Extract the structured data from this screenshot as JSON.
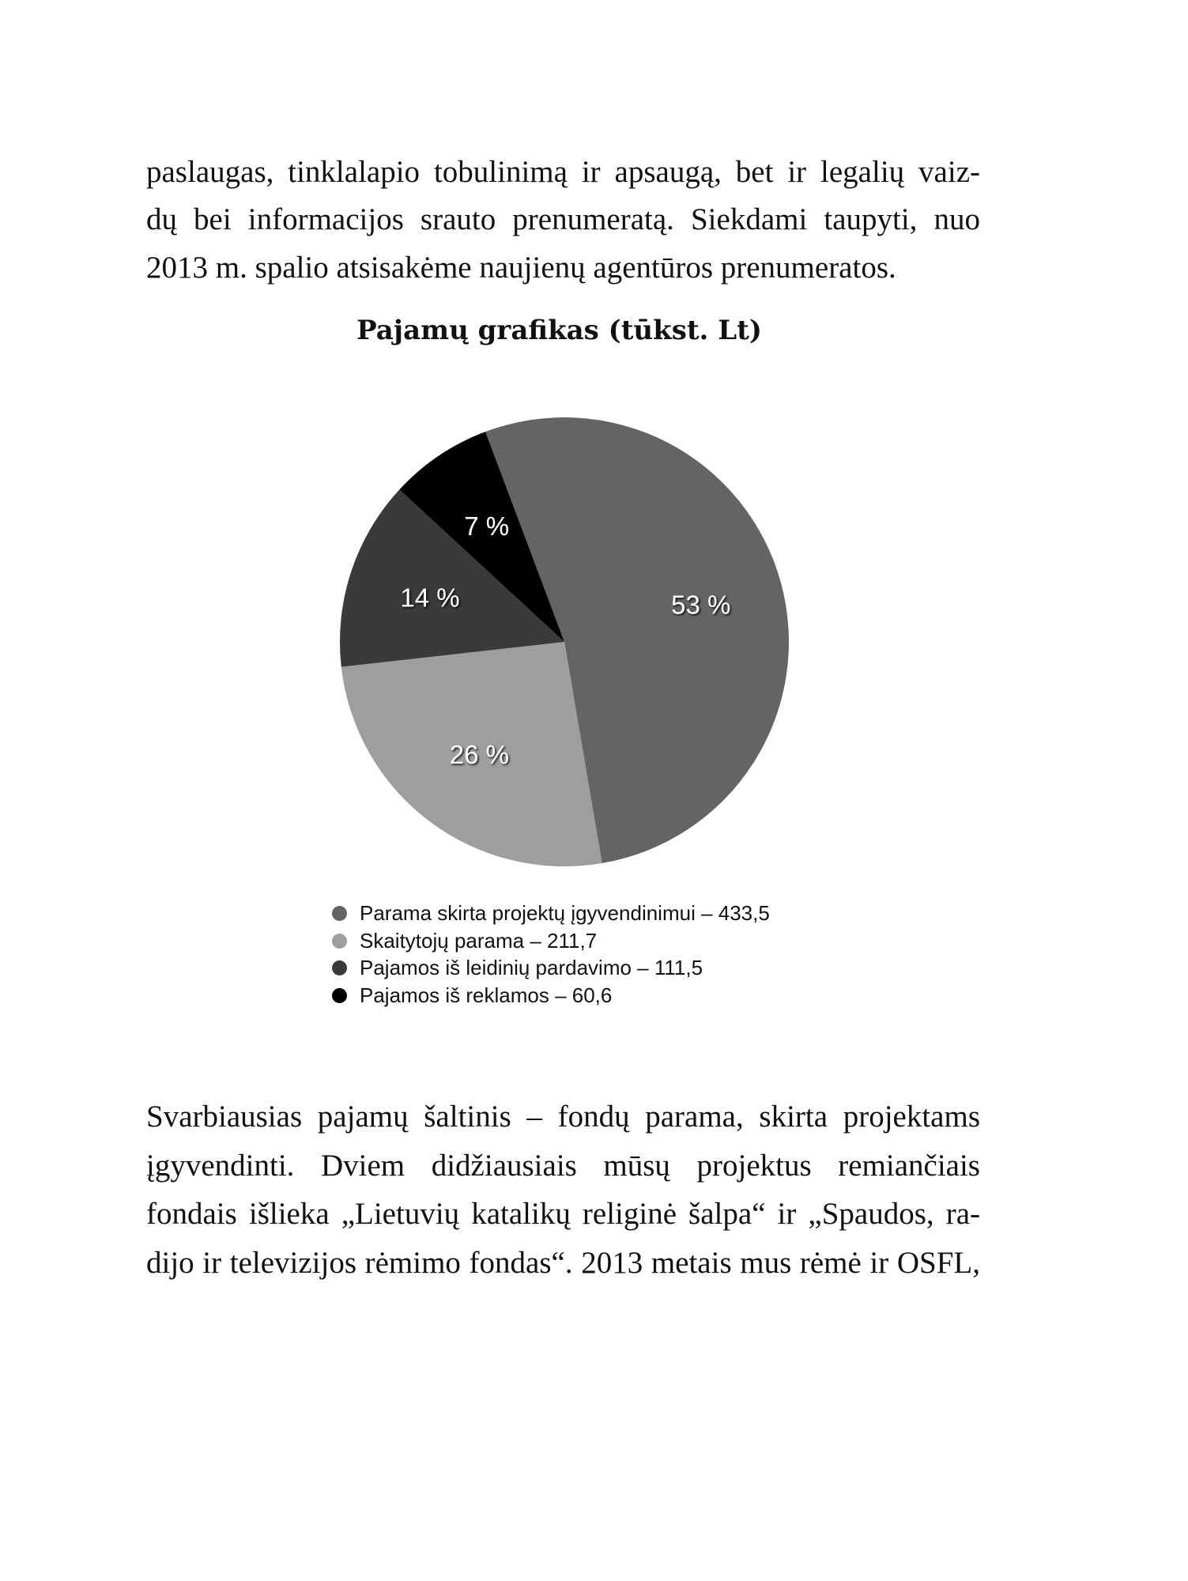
{
  "paragraph_top": [
    "paslaugas, tinklalapio tobulinimą ir apsaugą, bet ir legalių vaiz-",
    "dų bei informacijos srauto prenumeratą. Siekdami taupyti, nuo",
    "2013 m. spalio atsisakėme naujienų agentūros prenumeratos."
  ],
  "chart_data": {
    "type": "pie",
    "title": "Pajamų grafikas (tūkst. Lt)",
    "slices": [
      {
        "name": "Parama skirta projektų įgyvendinimui",
        "value": 433.5,
        "label": "53 %",
        "legend": "Parama skirta projektų įgyvendinimui – 433,5",
        "color": "#646464"
      },
      {
        "name": "Skaitytojų parama",
        "value": 211.7,
        "label": "26 %",
        "legend": "Skaitytojų parama – 211,7",
        "color": "#9e9e9e"
      },
      {
        "name": "Pajamos iš leidinių pardavimo",
        "value": 111.5,
        "label": "14 %",
        "legend": "Pajamos iš leidinių pardavimo – 111,5",
        "color": "#3a3a3a"
      },
      {
        "name": "Pajamos iš reklamos",
        "value": 60.6,
        "label": "7 %",
        "legend": "Pajamos iš reklamos – 60,6",
        "color": "#000000"
      }
    ],
    "legend_position": "bottom"
  },
  "paragraph_bottom": [
    "Svarbiausias pajamų šaltinis – fondų parama, skirta projektams",
    "įgyvendinti. Dviem didžiausiais mūsų projektus remiančiais",
    "fondais išlieka „Lietuvių katalikų religinė šalpa“ ir „Spaudos, ra-",
    "dijo ir televizijos rėmimo fondas“. 2013 metais mus rėmė ir OSFL,"
  ]
}
